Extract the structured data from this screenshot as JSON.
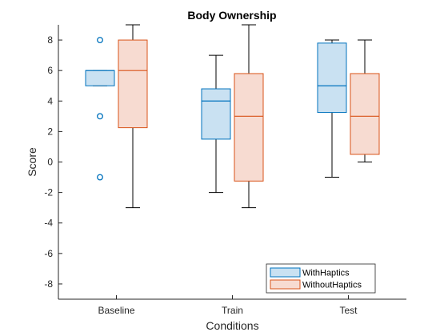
{
  "chart_data": {
    "type": "boxplot",
    "title": "Body Ownership",
    "xlabel": "Conditions",
    "ylabel": "Score",
    "categories": [
      "Baseline",
      "Train",
      "Test"
    ],
    "ylim": [
      -9,
      9
    ],
    "yticks": [
      -8,
      -6,
      -4,
      -2,
      0,
      2,
      4,
      6,
      8
    ],
    "legend_position": "bottom-right",
    "series": [
      {
        "name": "WithHaptics",
        "edge_color": "#0072BD",
        "fill_color": "#C9E1F2",
        "boxes": [
          {
            "category": "Baseline",
            "min": 5,
            "q1": 5,
            "median": 6,
            "q3": 6,
            "max": 6,
            "outliers": [
              8,
              3,
              -1
            ]
          },
          {
            "category": "Train",
            "min": -2,
            "q1": 1.5,
            "median": 4,
            "q3": 4.8,
            "max": 7,
            "outliers": []
          },
          {
            "category": "Test",
            "min": -1,
            "q1": 3.25,
            "median": 5,
            "q3": 7.8,
            "max": 8,
            "outliers": []
          }
        ]
      },
      {
        "name": "WithoutHaptics",
        "edge_color": "#D95319",
        "fill_color": "#F7DBD1",
        "boxes": [
          {
            "category": "Baseline",
            "min": -3,
            "q1": 2.25,
            "median": 6,
            "q3": 8,
            "max": 9,
            "outliers": []
          },
          {
            "category": "Train",
            "min": -3,
            "q1": -1.25,
            "median": 3,
            "q3": 5.8,
            "max": 9,
            "outliers": []
          },
          {
            "category": "Test",
            "min": 0,
            "q1": 0.5,
            "median": 3,
            "q3": 5.8,
            "max": 8,
            "outliers": []
          }
        ]
      }
    ]
  }
}
